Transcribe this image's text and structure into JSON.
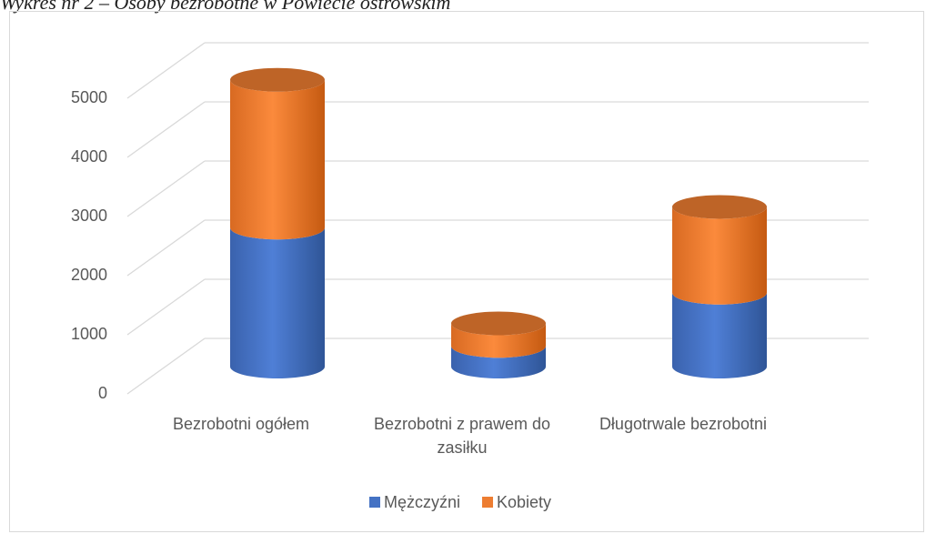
{
  "title": "Wykres nr 2 – Osoby bezrobotne w Powiecie ostrowskim",
  "chart_data": {
    "type": "bar3d",
    "categories": [
      "Bezrobotni ogółem",
      "Bezrobotni z prawem do zasiłku",
      "Długotrwale bezrobotni"
    ],
    "series": [
      {
        "name": "Mężczyźni",
        "color": "#4472c4",
        "values": [
          2350,
          350,
          1250
        ]
      },
      {
        "name": "Kobiety",
        "color": "#ed7d31",
        "values": [
          2500,
          380,
          1450
        ]
      }
    ],
    "ylim": [
      0,
      5000
    ],
    "yticks": [
      0,
      1000,
      2000,
      3000,
      4000,
      5000
    ],
    "grid": true,
    "legend": "bottom"
  }
}
